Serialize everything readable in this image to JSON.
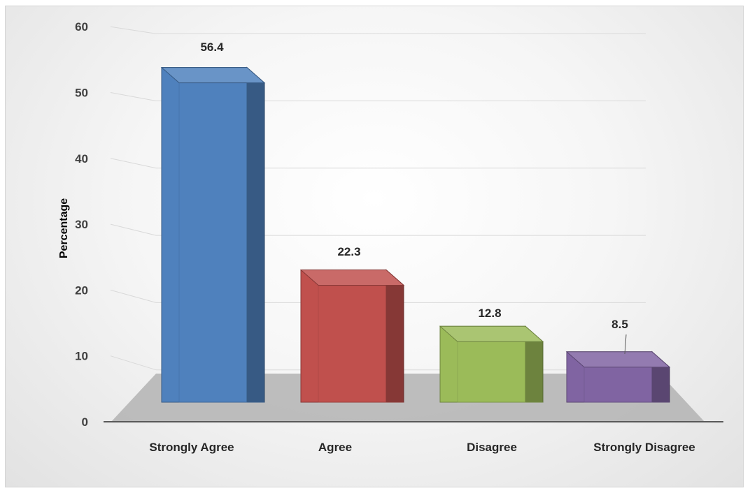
{
  "chart_data": {
    "type": "bar",
    "categories": [
      "Strongly Agree",
      "Agree",
      "Disagree",
      "Strongly Disagree"
    ],
    "values": [
      56.4,
      22.3,
      12.8,
      8.5
    ],
    "data_labels": [
      "56.4",
      "22.3",
      "12.8",
      "8.5"
    ],
    "title": "",
    "xlabel": "",
    "ylabel": "Percentage",
    "ylim": [
      0,
      60
    ],
    "yticks": [
      "0",
      "10",
      "20",
      "30",
      "40",
      "50",
      "60"
    ],
    "grid": true,
    "legend": "none",
    "style": "3d-clustered-column",
    "colors": [
      "#4f81bd",
      "#c0504d",
      "#9bbb59",
      "#8064a2"
    ]
  }
}
